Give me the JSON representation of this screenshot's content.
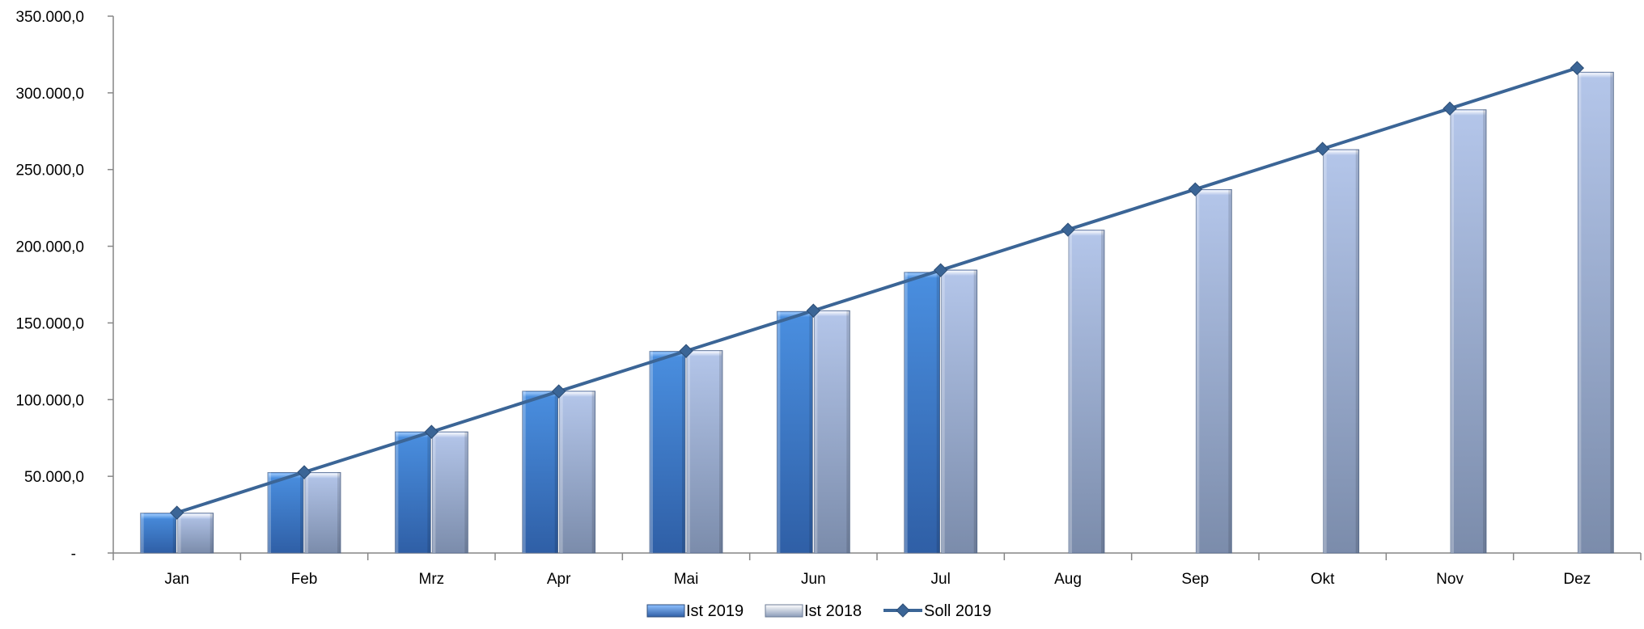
{
  "chart_data": {
    "type": "bar",
    "categories": [
      "Jan",
      "Feb",
      "Mrz",
      "Apr",
      "Mai",
      "Jun",
      "Jul",
      "Aug",
      "Sep",
      "Okt",
      "Nov",
      "Dez"
    ],
    "series": [
      {
        "name": "Ist 2019",
        "type": "bar",
        "values": [
          26000,
          52500,
          79000,
          105500,
          131500,
          157500,
          183000,
          null,
          null,
          null,
          null,
          null
        ]
      },
      {
        "name": "Ist 2018",
        "type": "bar",
        "values": [
          26000,
          52500,
          79000,
          105500,
          132000,
          158000,
          184500,
          210500,
          237000,
          263000,
          289000,
          313500
        ]
      },
      {
        "name": "Soll 2019",
        "type": "line",
        "values": [
          26300,
          52700,
          79000,
          105400,
          131700,
          158000,
          184400,
          210800,
          237100,
          263500,
          289800,
          316200
        ]
      }
    ],
    "ylim": [
      0,
      350000
    ],
    "yticks": [
      0,
      50000,
      100000,
      150000,
      200000,
      250000,
      300000,
      350000
    ],
    "ytick_labels": [
      "-",
      "50.000,0",
      "100.000,0",
      "150.000,0",
      "200.000,0",
      "250.000,0",
      "300.000,0",
      "350.000,0"
    ],
    "grid": false,
    "legend_position": "bottom",
    "colors": {
      "Ist 2019": "#3f7dd0",
      "Ist 2018": "#a9bbdf",
      "Soll 2019": "#3b6596",
      "axis": "#868686"
    }
  }
}
